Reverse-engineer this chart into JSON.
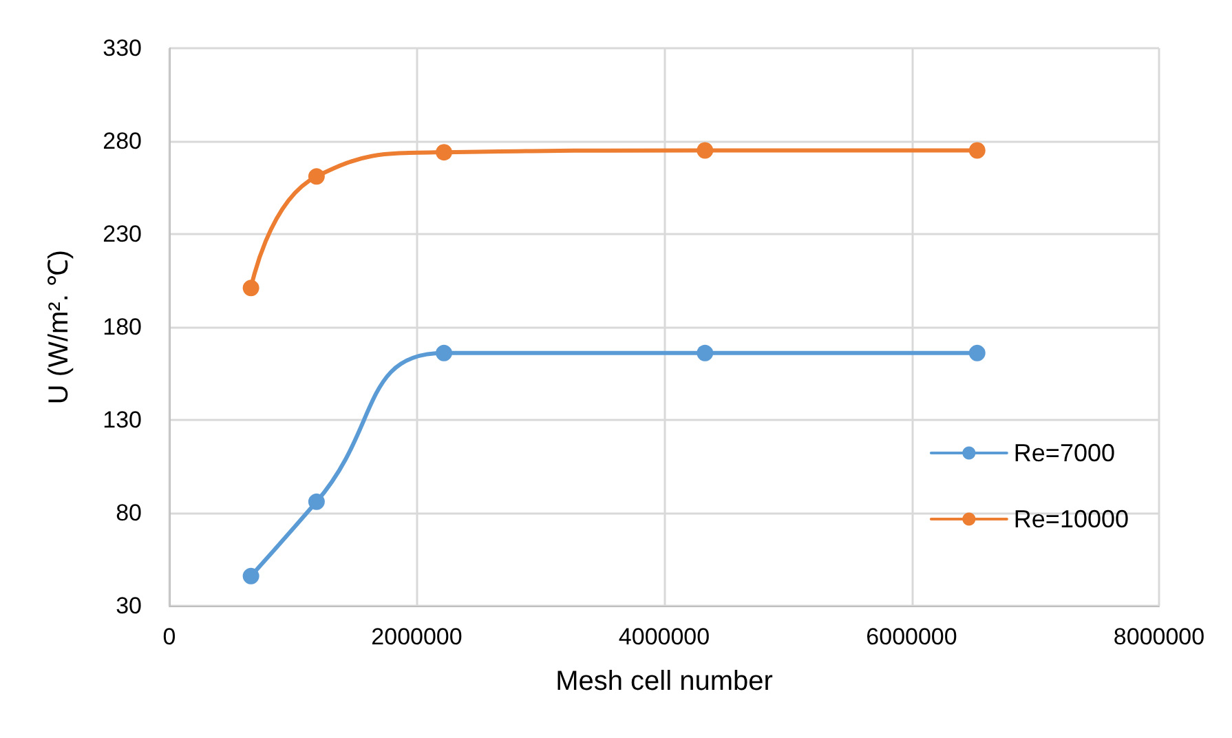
{
  "chart_data": {
    "type": "line",
    "xlabel": "Mesh cell number",
    "ylabel": "U (W/m². ℃)",
    "x": [
      660000,
      1190000,
      2220000,
      4330000,
      6530000
    ],
    "series": [
      {
        "name": "Re=7000",
        "color": "#5b9bd5",
        "values": [
          46,
          86,
          166,
          166,
          166
        ]
      },
      {
        "name": "Re=10000",
        "color": "#ed7d31",
        "values": [
          201,
          261,
          274,
          275,
          275
        ]
      }
    ],
    "xlim": [
      0,
      8000000
    ],
    "xticks": [
      0,
      2000000,
      4000000,
      6000000,
      8000000
    ],
    "ylim": [
      30,
      330
    ],
    "yticks": [
      30,
      80,
      130,
      180,
      230,
      280,
      330
    ],
    "grid": true,
    "legend": "right",
    "marker": "circle",
    "line_style": "solid"
  }
}
